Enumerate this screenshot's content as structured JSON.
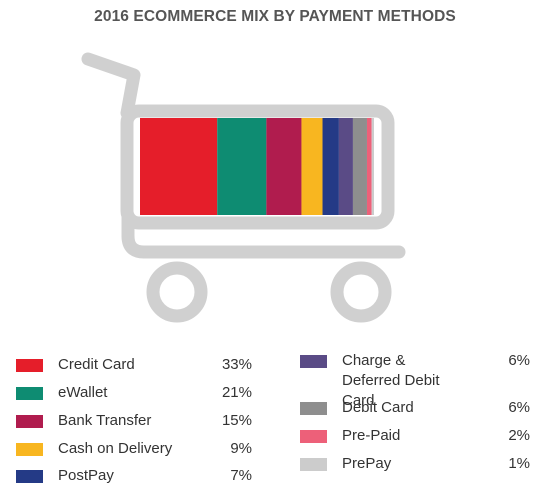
{
  "chart_data": {
    "type": "bar",
    "title": "2016 ECOMMERCE MIX BY PAYMENT METHODS",
    "stacked": true,
    "orientation": "horizontal",
    "total": 100,
    "unit": "%",
    "series": [
      {
        "name": "Credit Card",
        "value": 33,
        "label": "33%",
        "color": "#e51e2a"
      },
      {
        "name": "eWallet",
        "value": 21,
        "label": "21%",
        "color": "#0e8c72"
      },
      {
        "name": "Bank Transfer",
        "value": 15,
        "label": "15%",
        "color": "#b01c4e"
      },
      {
        "name": "Cash on Delivery",
        "value": 9,
        "label": "9%",
        "color": "#f8b620"
      },
      {
        "name": "PostPay",
        "value": 7,
        "label": "7%",
        "color": "#243a86"
      },
      {
        "name": "Charge & Deferred Debit Card",
        "value": 6,
        "label": "6%",
        "color": "#5a4b86"
      },
      {
        "name": "Debit Card",
        "value": 6,
        "label": "6%",
        "color": "#8e8e8e"
      },
      {
        "name": "Pre-Paid",
        "value": 2,
        "label": "2%",
        "color": "#ed6079"
      },
      {
        "name": "PrePay",
        "value": 1,
        "label": "1%",
        "color": "#cccccc"
      }
    ]
  },
  "colors": {
    "cart": "#d0d0d0",
    "title": "#555555",
    "text": "#333333"
  },
  "icons": {
    "cart": "shopping-cart-icon",
    "wheel": "wheel-icon"
  }
}
